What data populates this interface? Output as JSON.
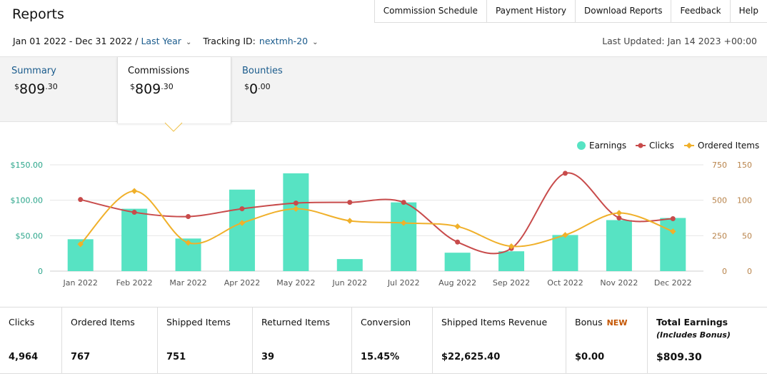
{
  "header": {
    "title": "Reports",
    "nav": [
      "Commission Schedule",
      "Payment History",
      "Download Reports",
      "Feedback",
      "Help"
    ]
  },
  "filters": {
    "date_range": "Jan 01 2022 - Dec 31 2022",
    "separator": "/",
    "period": "Last Year",
    "tracking_label": "Tracking ID:",
    "tracking_id": "nextmh-20",
    "last_updated": "Last Updated: Jan 14 2023 +00:00"
  },
  "tabs": {
    "summary": {
      "label": "Summary",
      "currency": "$",
      "whole": "809",
      "cents": ".30"
    },
    "commissions": {
      "label": "Commissions",
      "currency": "$",
      "whole": "809",
      "cents": ".30"
    },
    "bounties": {
      "label": "Bounties",
      "currency": "$",
      "whole": "0",
      "cents": ".00"
    }
  },
  "chart_data": {
    "type": "bar",
    "categories": [
      "Jan 2022",
      "Feb 2022",
      "Mar 2022",
      "Apr 2022",
      "May 2022",
      "Jun 2022",
      "Jul 2022",
      "Aug 2022",
      "Sep 2022",
      "Oct 2022",
      "Nov 2022",
      "Dec 2022"
    ],
    "series": [
      {
        "name": "Earnings",
        "type": "bar",
        "axis": "left",
        "color": "#57e3c3",
        "values": [
          45,
          88,
          46,
          115,
          138,
          17,
          97,
          26,
          28,
          51,
          72,
          75
        ]
      },
      {
        "name": "Clicks",
        "type": "line",
        "axis": "right-clicks",
        "color": "#c84b4b",
        "values": [
          505,
          415,
          385,
          440,
          480,
          485,
          485,
          205,
          160,
          690,
          375,
          370
        ]
      },
      {
        "name": "Ordered Items",
        "type": "line",
        "axis": "right-items",
        "color": "#f0b02a",
        "values": [
          38,
          113,
          40,
          68,
          88,
          71,
          68,
          63,
          35,
          51,
          82,
          56
        ]
      }
    ],
    "y_left": {
      "ticks": [
        "0",
        "$50.00",
        "$100.00",
        "$150.00"
      ],
      "max": 150
    },
    "y_right_clicks": {
      "ticks": [
        "0",
        "250",
        "500",
        "750"
      ],
      "max": 750
    },
    "y_right_items": {
      "ticks": [
        "0",
        "50",
        "100",
        "150"
      ],
      "max": 150
    },
    "legend_position": "top-right",
    "grid": true
  },
  "stats": [
    {
      "label": "Clicks",
      "value": "4,964"
    },
    {
      "label": "Ordered Items",
      "value": "767"
    },
    {
      "label": "Shipped Items",
      "value": "751"
    },
    {
      "label": "Returned Items",
      "value": "39"
    },
    {
      "label": "Conversion",
      "value": "15.45%"
    },
    {
      "label": "Shipped Items Revenue",
      "value": "$22,625.40"
    },
    {
      "label": "Bonus",
      "badge": "NEW",
      "value": "$0.00"
    },
    {
      "label": "Total Earnings",
      "sub": "(Includes Bonus)",
      "value": "$809.30"
    }
  ]
}
